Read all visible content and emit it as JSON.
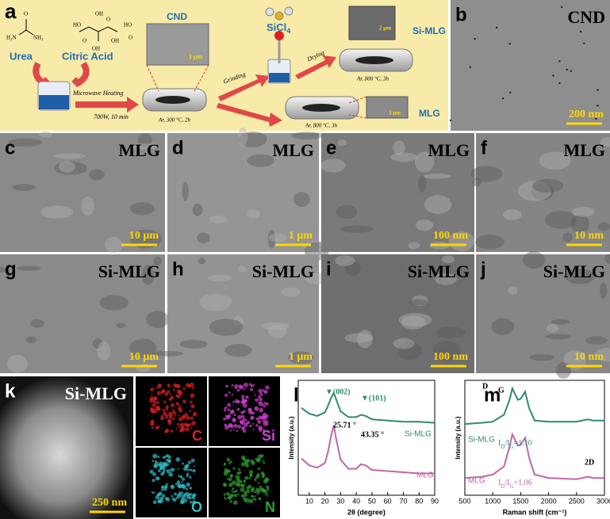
{
  "panel_a": {
    "label": "a",
    "urea": "Urea",
    "citric_acid": "Citric Acid",
    "urea_groups": [
      "O",
      "H₂N",
      "NH₂"
    ],
    "citric_groups": [
      "HO",
      "OH",
      "O",
      "O",
      "OH",
      "HO",
      "O",
      "OH"
    ],
    "microwave": "Microwave Heating",
    "microwave_cond": "700W, 10 min",
    "cnd": "CND",
    "cnd_scale": "1 μm",
    "step1": "Ar, 300 °C, 2h",
    "grinding": "Grinding",
    "sicl": [
      "SiCl",
      "4"
    ],
    "drying": "Drying",
    "si_mlg": "Si-MLG",
    "si_mlg_scale": "2 μm",
    "step2": "Ar, 800 °C, 3h",
    "mlg": "MLG",
    "mlg_scale": "3 μm",
    "step3": "Ar, 800 °C, 3h"
  },
  "images": [
    {
      "label": "b",
      "name": "CND",
      "scale": "200 nm"
    },
    {
      "label": "c",
      "name": "MLG",
      "scale": "10 μm"
    },
    {
      "label": "d",
      "name": "MLG",
      "scale": "1 μm"
    },
    {
      "label": "e",
      "name": "MLG",
      "scale": "100 nm"
    },
    {
      "label": "f",
      "name": "MLG",
      "scale": "10 nm"
    },
    {
      "label": "g",
      "name": "Si-MLG",
      "scale": "10 μm"
    },
    {
      "label": "h",
      "name": "Si-MLG",
      "scale": "1 μm"
    },
    {
      "label": "i",
      "name": "Si-MLG",
      "scale": "100 nm"
    },
    {
      "label": "j",
      "name": "Si-MLG",
      "scale": "10 nm"
    },
    {
      "label": "k",
      "name": "Si-MLG",
      "scale": "250 nm"
    }
  ],
  "maps": [
    {
      "element": "C",
      "color": "#e02020"
    },
    {
      "element": "Si",
      "color": "#d040d0"
    },
    {
      "element": "O",
      "color": "#30c0c8"
    },
    {
      "element": "N",
      "color": "#30a030"
    }
  ],
  "chart_data": [
    {
      "type": "line",
      "label": "l",
      "x_label": "2θ (degree)",
      "y_label": "Intensity (a.u.)",
      "x": [
        5,
        10,
        15,
        20,
        22,
        24,
        25.7,
        27,
        30,
        35,
        40,
        43,
        46,
        50,
        60,
        70,
        80,
        90
      ],
      "series": [
        {
          "name": "Si-MLG",
          "color": "#2e8b6a",
          "values": [
            7.6,
            7.1,
            6.9,
            7.2,
            7.8,
            8.5,
            8.9,
            8.4,
            7.3,
            6.8,
            6.8,
            7.0,
            6.9,
            6.6,
            6.5,
            6.4,
            6.4,
            6.3
          ]
        },
        {
          "name": "MLG",
          "color": "#c066a8",
          "values": [
            3.2,
            2.6,
            2.4,
            2.8,
            3.8,
            5.2,
            6.1,
            5.0,
            3.1,
            2.3,
            2.3,
            2.7,
            2.6,
            2.2,
            2.1,
            2.0,
            1.9,
            1.9
          ]
        }
      ],
      "xlim": [
        3,
        90
      ],
      "xticks": [
        10,
        20,
        30,
        40,
        50,
        60,
        70,
        80,
        90
      ],
      "ylim": [
        0,
        10
      ],
      "annotations": [
        "▼(002)",
        "25.71 °",
        "▼(101)",
        "43.35 °"
      ]
    },
    {
      "type": "line",
      "label": "m",
      "x_label": "Raman shift (cm⁻¹)",
      "y_label": "Intensity (a.u.)",
      "x": [
        500,
        800,
        1000,
        1200,
        1300,
        1350,
        1450,
        1500,
        1580,
        1650,
        1750,
        2000,
        2500,
        2700,
        2800,
        3000
      ],
      "series": [
        {
          "name": "Si-MLG",
          "color": "#2e8b6a",
          "values": [
            6.2,
            6.3,
            6.4,
            7.0,
            8.3,
            9.3,
            8.3,
            8.4,
            9.0,
            7.6,
            6.5,
            6.4,
            6.4,
            6.6,
            6.5,
            6.5
          ]
        },
        {
          "name": "MLG",
          "color": "#c066a8",
          "values": [
            1.5,
            1.6,
            1.8,
            2.5,
            4.2,
            5.3,
            4.3,
            4.4,
            5.0,
            3.3,
            1.8,
            1.5,
            1.4,
            1.6,
            1.5,
            1.5
          ]
        }
      ],
      "xlim": [
        500,
        3000
      ],
      "xticks": [
        500,
        1000,
        1500,
        2000,
        2500,
        3000
      ],
      "ylim": [
        0,
        10
      ],
      "annotations": [
        "D",
        "G",
        "2D"
      ],
      "ratios": [
        [
          "I",
          "D",
          "/I",
          "G",
          "=1.10"
        ],
        [
          "I",
          "D",
          "/I",
          "G",
          "=1.06"
        ]
      ]
    }
  ]
}
